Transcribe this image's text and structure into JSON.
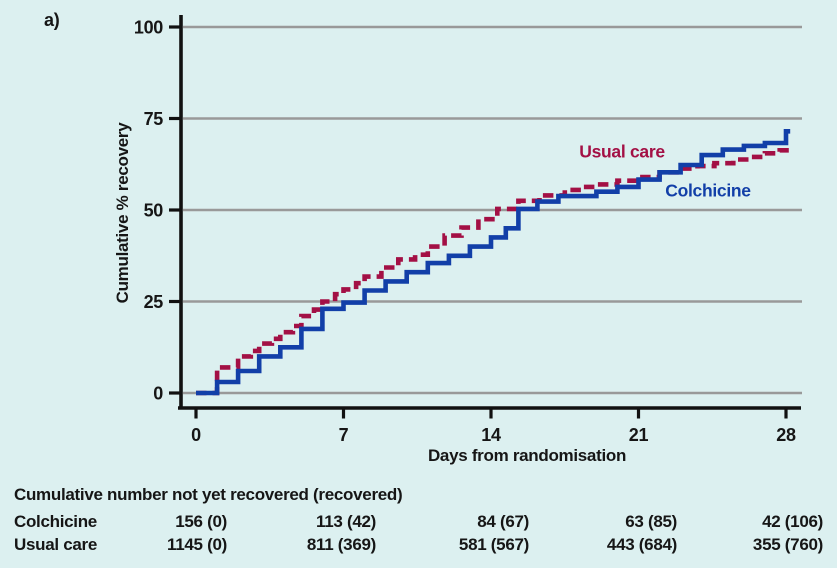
{
  "panel_label": "a)",
  "colors": {
    "background": "#dcf0f0",
    "colchicine": "#123fa8",
    "usual_care": "#a31045",
    "gridline": "#999999",
    "axis": "#111111",
    "text": "#161616"
  },
  "chart_data": {
    "type": "line",
    "subtype": "step-after",
    "title": "",
    "xlabel": "Days from randomisation",
    "ylabel": "Cumulative % recovery",
    "xlim": [
      0,
      28
    ],
    "ylim": [
      0,
      100
    ],
    "xticks": [
      0,
      7,
      14,
      21,
      28
    ],
    "yticks": [
      0,
      25,
      50,
      75,
      100
    ],
    "grid": "horizontal-only",
    "legend_position": "inline-annotations",
    "series": [
      {
        "name": "Usual care",
        "color": "#a31045",
        "line_style": "dashed",
        "points": [
          [
            0,
            0
          ],
          [
            1,
            7
          ],
          [
            2,
            10
          ],
          [
            2.6,
            11.5
          ],
          [
            3,
            13.5
          ],
          [
            3.6,
            14.8
          ],
          [
            4,
            16.6
          ],
          [
            4.6,
            18.3
          ],
          [
            5,
            21
          ],
          [
            5.6,
            22.8
          ],
          [
            6,
            25
          ],
          [
            6.6,
            27
          ],
          [
            7,
            28.3
          ],
          [
            7.6,
            30
          ],
          [
            8,
            31.8
          ],
          [
            8.8,
            34.3
          ],
          [
            9.6,
            36.5
          ],
          [
            10.4,
            37.8
          ],
          [
            11,
            40
          ],
          [
            11.8,
            43
          ],
          [
            12.6,
            45.2
          ],
          [
            13.4,
            47.5
          ],
          [
            14.3,
            50.3
          ],
          [
            15.3,
            52.5
          ],
          [
            16.3,
            54
          ],
          [
            17.5,
            55.5
          ],
          [
            18.3,
            56.3
          ],
          [
            19,
            57
          ],
          [
            20,
            58
          ],
          [
            21,
            59
          ],
          [
            22,
            60.3
          ],
          [
            23,
            61.3
          ],
          [
            23.8,
            62
          ],
          [
            24.6,
            62.8
          ],
          [
            25.5,
            63.8
          ],
          [
            26.3,
            64.5
          ],
          [
            27,
            65.5
          ],
          [
            27.7,
            66.3
          ],
          [
            28.2,
            66.3
          ]
        ]
      },
      {
        "name": "Colchicine",
        "color": "#123fa8",
        "line_style": "solid",
        "points": [
          [
            0,
            0
          ],
          [
            1,
            3
          ],
          [
            2,
            6
          ],
          [
            3,
            10
          ],
          [
            4,
            12.5
          ],
          [
            5,
            17.5
          ],
          [
            6,
            23
          ],
          [
            7,
            24.7
          ],
          [
            8,
            28
          ],
          [
            9,
            30.5
          ],
          [
            10,
            33
          ],
          [
            11,
            35.5
          ],
          [
            12,
            37.5
          ],
          [
            13,
            40
          ],
          [
            14,
            42.5
          ],
          [
            14.7,
            45
          ],
          [
            15.3,
            50.3
          ],
          [
            16.2,
            52.3
          ],
          [
            17.2,
            53.8
          ],
          [
            19,
            55
          ],
          [
            20,
            56.3
          ],
          [
            21,
            58.3
          ],
          [
            22,
            60.3
          ],
          [
            23,
            62.3
          ],
          [
            24,
            65
          ],
          [
            25,
            66.5
          ],
          [
            26,
            67.5
          ],
          [
            27,
            68.3
          ],
          [
            28,
            71.5
          ],
          [
            28.2,
            71.5
          ]
        ]
      }
    ]
  },
  "table": {
    "title": "Cumulative number not yet recovered (recovered)",
    "columns_at_days": [
      0,
      7,
      14,
      21,
      28
    ],
    "rows": [
      {
        "label": "Colchicine",
        "values": [
          "156 (0)",
          "113 (42)",
          "84 (67)",
          "63 (85)",
          "42 (106)"
        ]
      },
      {
        "label": "Usual care",
        "values": [
          "1145 (0)",
          "811 (369)",
          "581 (567)",
          "443 (684)",
          "355 (760)"
        ]
      }
    ]
  }
}
